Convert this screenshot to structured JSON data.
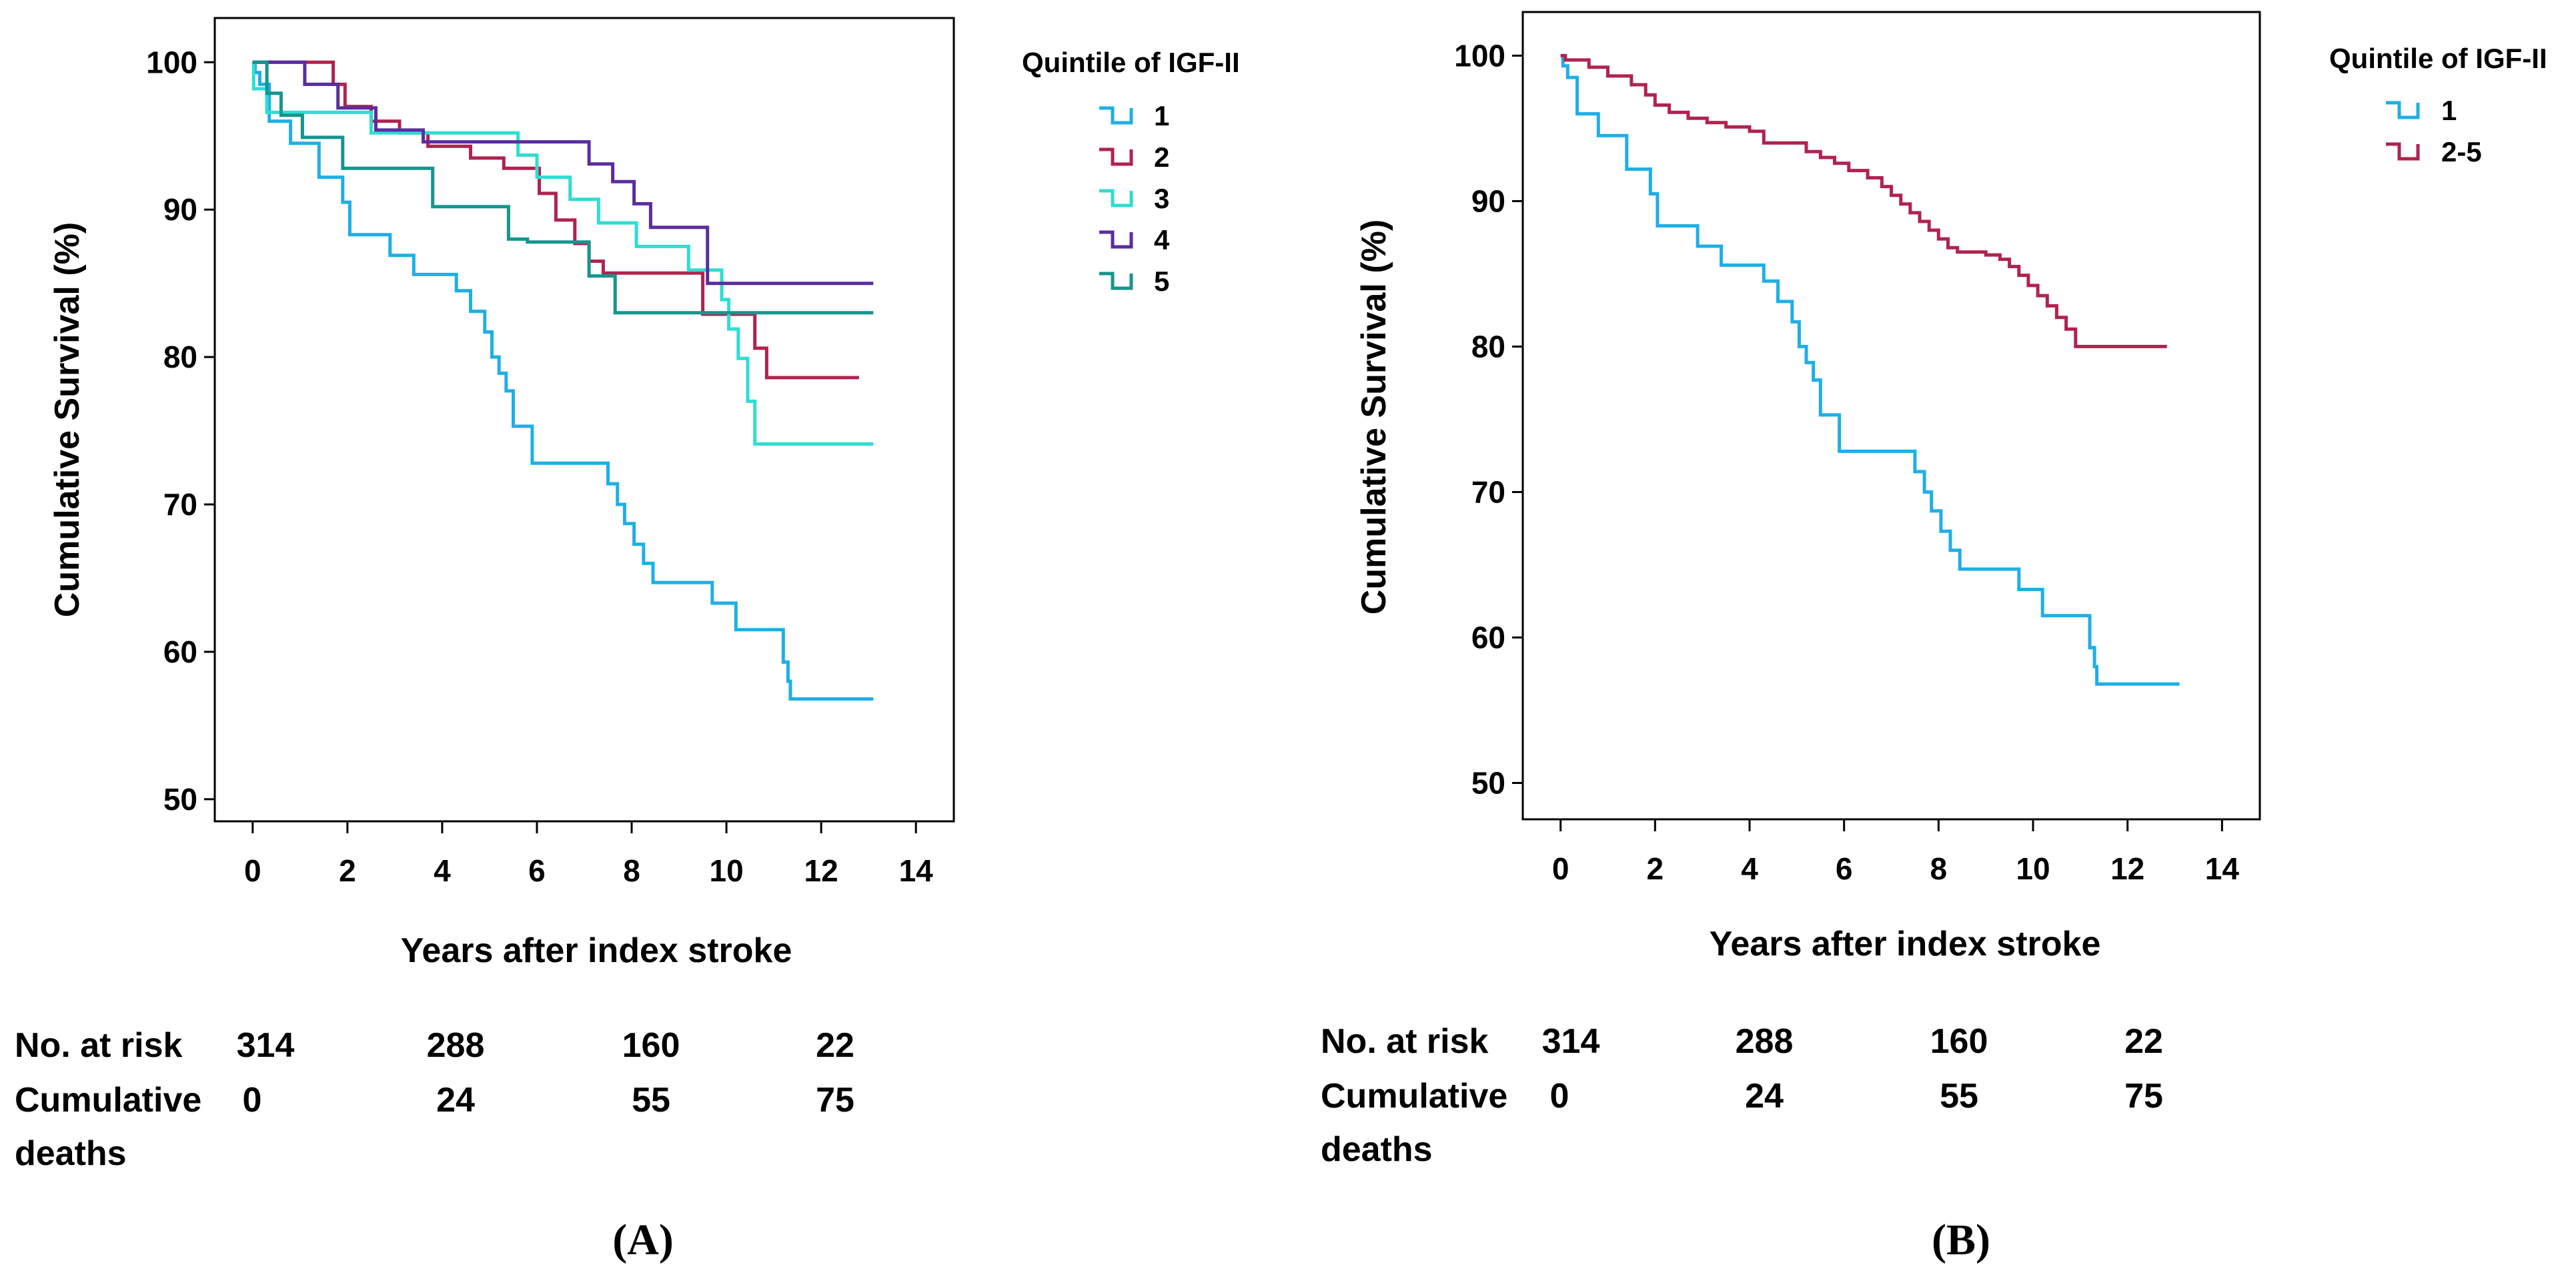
{
  "chart_data": [
    {
      "type": "line",
      "subtype": "kaplan-meier step curves",
      "panel_label": "(A)",
      "xlabel": "Years after index stroke",
      "ylabel": "Cumulative Survival (%)",
      "xlim": [
        -0.8,
        14.8
      ],
      "ylim": [
        48.5,
        103
      ],
      "xticks": [
        0,
        2,
        4,
        6,
        8,
        10,
        12,
        14
      ],
      "yticks": [
        50,
        60,
        70,
        80,
        90,
        100
      ],
      "legend_title": "Quintile of IGF-II",
      "legend_position": "right",
      "series": [
        {
          "name": "1",
          "color": "#1EAFE6",
          "x": [
            0,
            0.05,
            0.15,
            0.35,
            0.8,
            1.4,
            1.9,
            2.05,
            2.9,
            3.4,
            4.3,
            4.6,
            4.9,
            5.05,
            5.2,
            5.35,
            5.5,
            5.9,
            7.5,
            7.7,
            7.85,
            8.05,
            8.25,
            8.45,
            8.65,
            9.7,
            10.2,
            11.2,
            11.3,
            11.35,
            13.1
          ],
          "y": [
            100,
            99.3,
            98.5,
            96,
            94.5,
            92.2,
            90.5,
            88.3,
            86.9,
            85.6,
            84.5,
            83.1,
            81.7,
            80,
            78.9,
            77.7,
            75.3,
            72.8,
            71.4,
            70,
            68.7,
            67.3,
            66,
            64.7,
            64.7,
            63.3,
            61.5,
            59.3,
            58,
            56.8,
            56.8
          ]
        },
        {
          "name": "2",
          "color": "#B0234E",
          "x": [
            0,
            1.7,
            1.95,
            2.5,
            3.1,
            3.7,
            4.6,
            5.3,
            6.05,
            6.4,
            6.8,
            7.1,
            7.4,
            7.7,
            9.5,
            10.6,
            10.85,
            12.8
          ],
          "y": [
            100,
            98.5,
            97,
            96,
            95.2,
            94.3,
            93.5,
            92.8,
            91.1,
            89.3,
            87.7,
            86.5,
            85.7,
            85.7,
            82.9,
            80.6,
            78.6,
            78.6
          ]
        },
        {
          "name": "3",
          "color": "#2EDDD3",
          "x": [
            0,
            0.02,
            0.3,
            2.5,
            5.6,
            6.0,
            6.7,
            7.3,
            8.1,
            9.2,
            9.9,
            10.05,
            10.25,
            10.45,
            10.6,
            13.1
          ],
          "y": [
            100,
            98.2,
            96.6,
            95.2,
            93.7,
            92.2,
            90.7,
            89.1,
            87.5,
            85.9,
            83.9,
            81.9,
            79.9,
            77,
            74.1,
            74.1
          ]
        },
        {
          "name": "4",
          "color": "#5A2D9E",
          "x": [
            0,
            1.1,
            1.8,
            2.6,
            3.6,
            7.1,
            7.6,
            8.05,
            8.4,
            9.6,
            13.1
          ],
          "y": [
            100,
            98.5,
            96.9,
            95.4,
            94.6,
            93.1,
            91.9,
            90.4,
            88.8,
            85,
            85
          ]
        },
        {
          "name": "5",
          "color": "#16958D",
          "x": [
            0,
            0.3,
            0.6,
            1.05,
            1.9,
            3.8,
            5.4,
            5.8,
            7.1,
            7.5,
            7.65,
            13.1
          ],
          "y": [
            100,
            97.9,
            96.4,
            94.9,
            92.8,
            90.2,
            88,
            87.8,
            85.5,
            85.5,
            83,
            83
          ]
        }
      ],
      "risk_table": {
        "rows": [
          {
            "label": "No. at risk",
            "values": [
              "314",
              "288",
              "160",
              "22"
            ]
          },
          {
            "label": "Cumulative deaths",
            "label_lines": [
              "Cumulative",
              "deaths"
            ],
            "values": [
              "0",
              "24",
              "55",
              "75"
            ]
          }
        ]
      }
    },
    {
      "type": "line",
      "subtype": "kaplan-meier step curves",
      "panel_label": "(B)",
      "xlabel": "Years after index stroke",
      "ylabel": "Cumulative Survival (%)",
      "xlim": [
        -0.8,
        14.8
      ],
      "ylim": [
        47.5,
        103
      ],
      "xticks": [
        0,
        2,
        4,
        6,
        8,
        10,
        12,
        14
      ],
      "yticks": [
        50,
        60,
        70,
        80,
        90,
        100
      ],
      "legend_title": "Quintile of IGF-II",
      "legend_position": "right",
      "series": [
        {
          "name": "1",
          "color": "#1EAFE6",
          "x": [
            0,
            0.05,
            0.15,
            0.35,
            0.8,
            1.4,
            1.9,
            2.05,
            2.9,
            3.4,
            4.3,
            4.6,
            4.9,
            5.05,
            5.2,
            5.35,
            5.5,
            5.9,
            7.5,
            7.7,
            7.85,
            8.05,
            8.25,
            8.45,
            8.65,
            9.7,
            10.2,
            11.2,
            11.3,
            11.35,
            13.1
          ],
          "y": [
            100,
            99.3,
            98.5,
            96,
            94.5,
            92.2,
            90.5,
            88.3,
            86.9,
            85.6,
            84.5,
            83.1,
            81.7,
            80,
            78.9,
            77.7,
            75.3,
            72.8,
            71.4,
            70,
            68.7,
            67.3,
            66,
            64.7,
            64.7,
            63.3,
            61.5,
            59.3,
            58,
            56.8,
            56.8
          ]
        },
        {
          "name": "2-5",
          "color": "#B0234E",
          "x": [
            0,
            0.1,
            0.6,
            1.0,
            1.5,
            1.8,
            2.0,
            2.3,
            2.7,
            3.1,
            3.5,
            4.0,
            4.3,
            5.2,
            5.5,
            5.8,
            6.1,
            6.5,
            6.8,
            7.0,
            7.2,
            7.4,
            7.6,
            7.8,
            8.0,
            8.2,
            8.4,
            9.0,
            9.3,
            9.5,
            9.7,
            9.9,
            10.1,
            10.3,
            10.5,
            10.7,
            10.9,
            12.8
          ],
          "y": [
            100,
            99.7,
            99.2,
            98.6,
            98,
            97.3,
            96.6,
            96.1,
            95.7,
            95.4,
            95.1,
            94.8,
            94,
            93.4,
            93,
            92.6,
            92.1,
            91.6,
            91,
            90.4,
            89.8,
            89.2,
            88.6,
            88,
            87.4,
            86.8,
            86.5,
            86.3,
            86,
            85.5,
            84.9,
            84.2,
            83.5,
            82.8,
            82,
            81.2,
            80,
            79.9
          ]
        }
      ],
      "risk_table": {
        "rows": [
          {
            "label": "No. at risk",
            "values": [
              "314",
              "288",
              "160",
              "22"
            ]
          },
          {
            "label": "Cumulative deaths",
            "label_lines": [
              "Cumulative",
              "deaths"
            ],
            "values": [
              "0",
              "24",
              "55",
              "75"
            ]
          }
        ]
      }
    }
  ]
}
